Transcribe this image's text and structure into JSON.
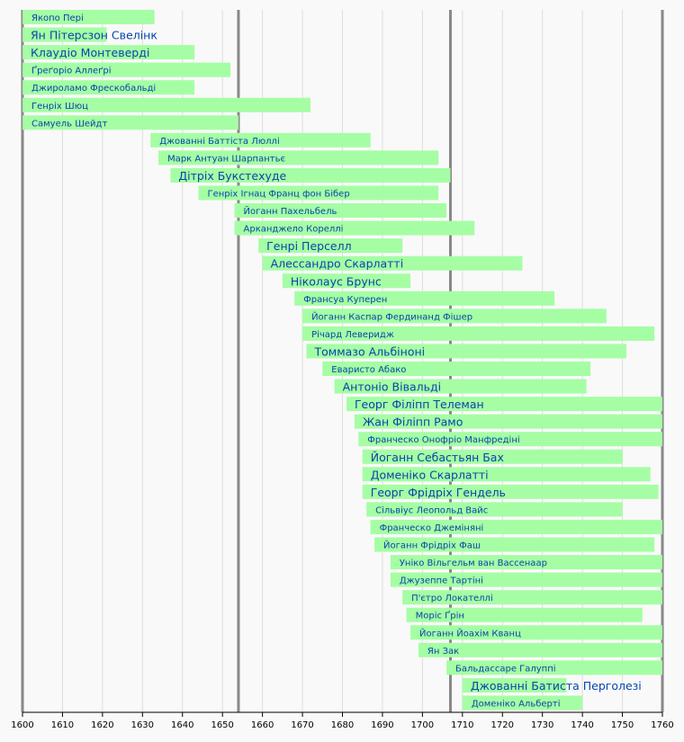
{
  "chart_data": {
    "type": "bar",
    "orientation": "horizontal-timeline",
    "title": "",
    "xlabel": "",
    "ylabel": "",
    "xlim": [
      1600,
      1760
    ],
    "x_ticks": [
      "1600",
      "1610",
      "1620",
      "1630",
      "1640",
      "1650",
      "1660",
      "1670",
      "1680",
      "1690",
      "1700",
      "1710",
      "1720",
      "1730",
      "1740",
      "1750",
      "1760"
    ],
    "major_lines": [
      1600,
      1654,
      1707,
      1760
    ],
    "grid": true,
    "colors": {
      "bar": "#a5fea4",
      "label": "#0645ad",
      "background": "#f9f9f9",
      "grid": "#dddddd",
      "major": "#888888"
    },
    "series": [
      {
        "name": "Якопо Пері",
        "start": 1600,
        "end": 1633,
        "emphasis": false
      },
      {
        "name": "Ян Пітерсзон Свелінк",
        "start": 1600,
        "end": 1621,
        "emphasis": true
      },
      {
        "name": "Клаудіо Монтеверді",
        "start": 1600,
        "end": 1643,
        "emphasis": true
      },
      {
        "name": "Ґреґоріо Аллеґрі",
        "start": 1600,
        "end": 1652,
        "emphasis": false
      },
      {
        "name": "Джироламо Фрескобальді",
        "start": 1600,
        "end": 1643,
        "emphasis": false
      },
      {
        "name": "Генріх Шюц",
        "start": 1600,
        "end": 1672,
        "emphasis": false
      },
      {
        "name": "Самуель Шейдт",
        "start": 1600,
        "end": 1654,
        "emphasis": false
      },
      {
        "name": "Джованні Баттіста Люллі",
        "start": 1632,
        "end": 1687,
        "emphasis": false
      },
      {
        "name": "Марк Антуан Шарпантьє",
        "start": 1634,
        "end": 1704,
        "emphasis": false
      },
      {
        "name": "Дітріх Букстехуде",
        "start": 1637,
        "end": 1707,
        "emphasis": true
      },
      {
        "name": "Генріх Ігнац Франц фон Бібер",
        "start": 1644,
        "end": 1704,
        "emphasis": false
      },
      {
        "name": "Йоганн Пахельбель",
        "start": 1653,
        "end": 1706,
        "emphasis": false
      },
      {
        "name": "Арканджело Кореллі",
        "start": 1653,
        "end": 1713,
        "emphasis": false
      },
      {
        "name": "Генрі Перселл",
        "start": 1659,
        "end": 1695,
        "emphasis": true
      },
      {
        "name": "Алессандро Скарлатті",
        "start": 1660,
        "end": 1725,
        "emphasis": true
      },
      {
        "name": "Ніколаус Брунс",
        "start": 1665,
        "end": 1697,
        "emphasis": true
      },
      {
        "name": "Франсуа Куперен",
        "start": 1668,
        "end": 1733,
        "emphasis": false
      },
      {
        "name": "Йоганн Каспар Фердинанд Фішер",
        "start": 1670,
        "end": 1746,
        "emphasis": false
      },
      {
        "name": "Річард Леверидж",
        "start": 1670,
        "end": 1758,
        "emphasis": false
      },
      {
        "name": "Томмазо Альбіноні",
        "start": 1671,
        "end": 1751,
        "emphasis": true
      },
      {
        "name": "Еваристо Абако",
        "start": 1675,
        "end": 1742,
        "emphasis": false
      },
      {
        "name": "Антоніо Вівальді",
        "start": 1678,
        "end": 1741,
        "emphasis": true
      },
      {
        "name": "Георг Філіпп Телеман",
        "start": 1681,
        "end": 1767,
        "emphasis": true
      },
      {
        "name": "Жан Філіпп Рамо",
        "start": 1683,
        "end": 1764,
        "emphasis": true
      },
      {
        "name": "Франческо Онофріо Манфредіні",
        "start": 1684,
        "end": 1762,
        "emphasis": false
      },
      {
        "name": "Йоганн Себастьян Бах",
        "start": 1685,
        "end": 1750,
        "emphasis": true
      },
      {
        "name": "Доменіко Скарлатті",
        "start": 1685,
        "end": 1757,
        "emphasis": true
      },
      {
        "name": "Георг Фрідріх Гендель",
        "start": 1685,
        "end": 1759,
        "emphasis": true
      },
      {
        "name": "Сільвіус Леопольд Вайс",
        "start": 1686,
        "end": 1750,
        "emphasis": false
      },
      {
        "name": "Франческо Джеміняні",
        "start": 1687,
        "end": 1762,
        "emphasis": false
      },
      {
        "name": "Йоганн Фрідріх Фаш",
        "start": 1688,
        "end": 1758,
        "emphasis": false
      },
      {
        "name": "Уніко Вільгельм ван Вассенаар",
        "start": 1692,
        "end": 1766,
        "emphasis": false
      },
      {
        "name": "Джузеппе Тартіні",
        "start": 1692,
        "end": 1770,
        "emphasis": false
      },
      {
        "name": "П'єтро Локателлі",
        "start": 1695,
        "end": 1764,
        "emphasis": false
      },
      {
        "name": "Моріс Ґрін",
        "start": 1696,
        "end": 1755,
        "emphasis": false
      },
      {
        "name": "Йоганн Йоахім Кванц",
        "start": 1697,
        "end": 1773,
        "emphasis": false
      },
      {
        "name": "Ян Зак",
        "start": 1699,
        "end": 1773,
        "emphasis": false
      },
      {
        "name": "Бальдассаре Галуппі",
        "start": 1706,
        "end": 1785,
        "emphasis": false
      },
      {
        "name": "Джованні Батиста Перголезі",
        "start": 1710,
        "end": 1736,
        "emphasis": true
      },
      {
        "name": "Доменіко Альберті",
        "start": 1710,
        "end": 1740,
        "emphasis": false
      }
    ]
  }
}
